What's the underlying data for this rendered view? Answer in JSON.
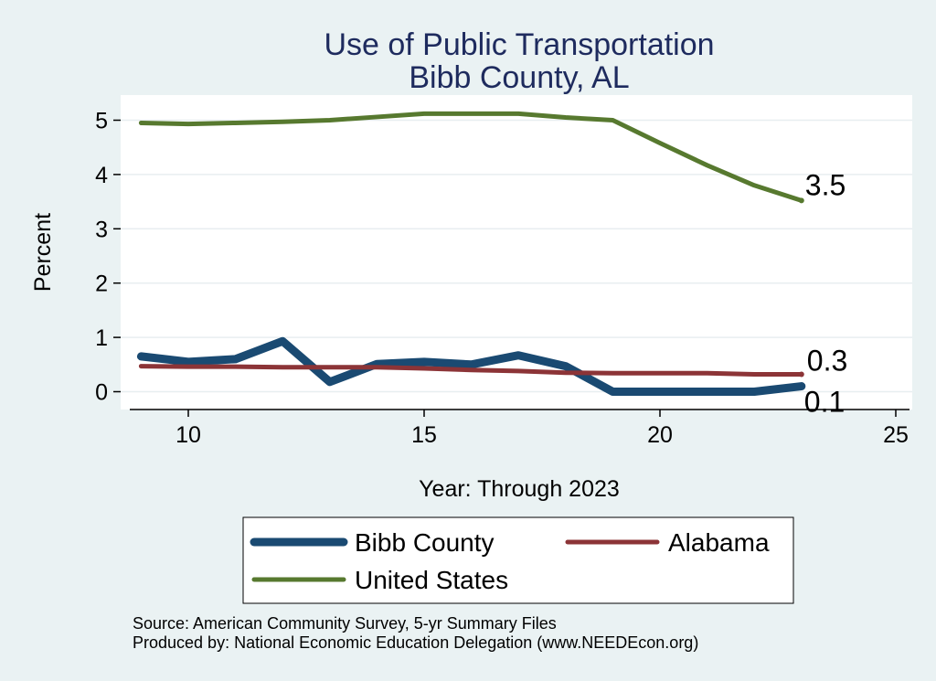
{
  "chart_data": {
    "type": "line",
    "title": "Use of Public Transportation",
    "subtitle": "Bibb County, AL",
    "xlabel": "Year: Through 2023",
    "ylabel": "Percent",
    "xlim": [
      9,
      25
    ],
    "ylim": [
      0,
      5.15
    ],
    "xticks": [
      10,
      15,
      20,
      25
    ],
    "yticks": [
      0,
      1,
      2,
      3,
      4,
      5
    ],
    "grid": true,
    "legend_position": "bottom",
    "series": [
      {
        "name": "Bibb County",
        "color": "#1a4a72",
        "x": [
          9,
          10,
          11,
          12,
          13,
          14,
          15,
          16,
          17,
          18,
          19,
          20,
          21,
          22,
          23
        ],
        "y": [
          0.65,
          0.55,
          0.6,
          0.93,
          0.18,
          0.51,
          0.55,
          0.5,
          0.67,
          0.47,
          0.0,
          0.0,
          0.0,
          0.0,
          0.1
        ],
        "end_label": "0.1"
      },
      {
        "name": "Alabama",
        "color": "#8c3437",
        "x": [
          9,
          10,
          11,
          12,
          13,
          14,
          15,
          16,
          17,
          18,
          19,
          20,
          21,
          22,
          23
        ],
        "y": [
          0.47,
          0.46,
          0.46,
          0.45,
          0.45,
          0.45,
          0.43,
          0.4,
          0.38,
          0.35,
          0.34,
          0.34,
          0.34,
          0.32,
          0.32
        ],
        "end_label": "0.3"
      },
      {
        "name": "United States",
        "color": "#57792f",
        "x": [
          9,
          10,
          11,
          12,
          13,
          14,
          15,
          16,
          17,
          18,
          19,
          20,
          21,
          22,
          23
        ],
        "y": [
          4.95,
          4.93,
          4.95,
          4.97,
          5.0,
          5.06,
          5.12,
          5.12,
          5.12,
          5.05,
          5.0,
          4.58,
          4.17,
          3.8,
          3.52
        ],
        "end_label": "3.5"
      }
    ],
    "source_lines": [
      "Source: American Community Survey, 5-yr Summary Files",
      "Produced by: National Economic Education Delegation (www.NEEDEcon.org)"
    ]
  }
}
